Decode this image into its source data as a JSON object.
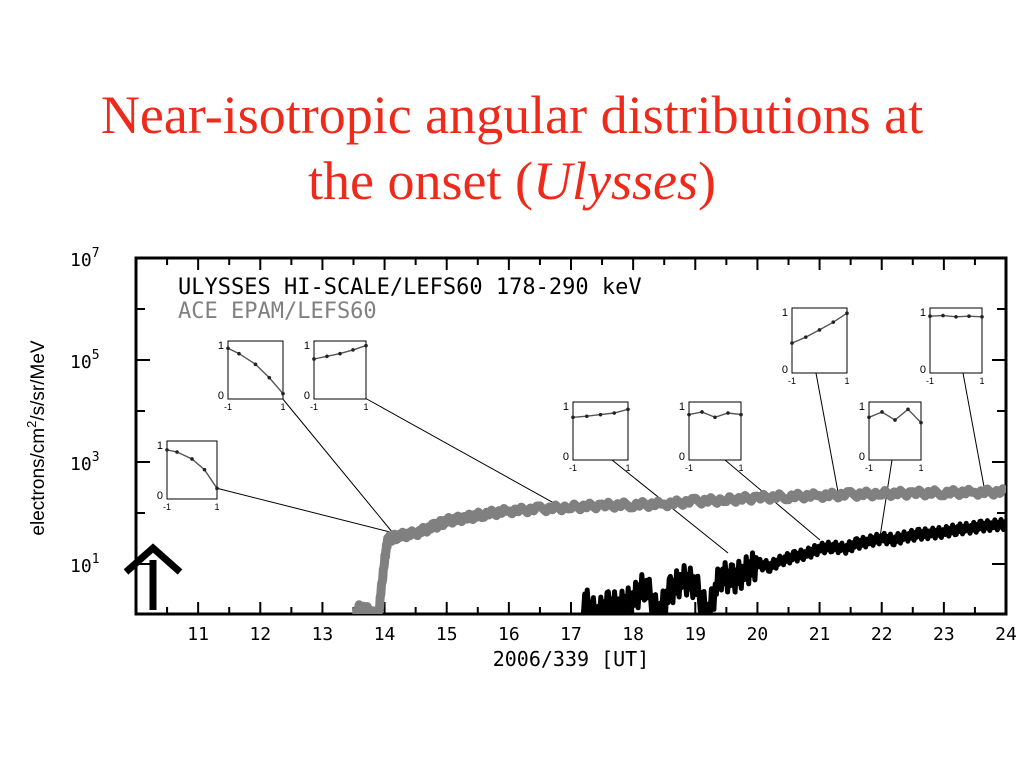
{
  "slide": {
    "title_line1": "Near-isotropic angular distributions at",
    "title_line2_prefix": "the onset (",
    "title_line2_italic": "Ulysses",
    "title_line2_suffix": ")"
  },
  "colors": {
    "title": "#ee2a1b",
    "ulysses": "#000000",
    "ace": "#808080"
  },
  "chart_data": {
    "type": "line",
    "ylabel_parts": [
      "electrons/cm",
      "2",
      "/s/sr/MeV"
    ],
    "yscale": "log",
    "ylim": [
      0.5,
      10000000
    ],
    "yticks": [
      {
        "exp": "1"
      },
      {
        "exp": "3"
      },
      {
        "exp": "5"
      },
      {
        "exp": "7"
      }
    ],
    "xlim": [
      10,
      24
    ],
    "xticks": [
      "11",
      "12",
      "13",
      "14",
      "15",
      "16",
      "17",
      "18",
      "19",
      "20",
      "21",
      "22",
      "23",
      "24"
    ],
    "xlabel": "2006/339 [UT]",
    "legend": [
      "ULYSSES HI-SCALE/LEFS60 178-290 keV",
      "ACE EPAM/LEFS60"
    ],
    "series": [
      {
        "name": "ULYSSES HI-SCALE/LEFS60 178-290 keV",
        "color": "#000000",
        "x": [
          17.2,
          17.4,
          17.6,
          17.8,
          18.0,
          18.2,
          18.4,
          18.6,
          18.8,
          19.0,
          19.2,
          19.4,
          19.6,
          19.8,
          20.0,
          20.2,
          20.4,
          20.6,
          20.8,
          21.0,
          21.2,
          21.4,
          21.6,
          21.8,
          22.0,
          22.2,
          22.4,
          22.6,
          22.8,
          23.0,
          23.2,
          23.4,
          23.6,
          23.8,
          24.0
        ],
        "y": [
          2,
          1,
          1.5,
          1.5,
          2,
          4,
          1,
          3,
          5,
          4,
          1,
          6,
          5,
          7,
          10,
          9,
          12,
          14,
          16,
          20,
          22,
          20,
          25,
          28,
          32,
          30,
          35,
          38,
          40,
          42,
          48,
          50,
          55,
          58,
          60
        ]
      },
      {
        "name": "ACE EPAM/LEFS60",
        "color": "#808080",
        "x": [
          13.55,
          13.6,
          13.9,
          14.0,
          14.05,
          14.2,
          14.5,
          14.8,
          15.0,
          15.3,
          15.6,
          16.0,
          16.5,
          17.0,
          17.5,
          18.0,
          18.5,
          19.0,
          19.5,
          20.0,
          20.5,
          21.0,
          21.5,
          22.0,
          22.5,
          23.0,
          23.5,
          24.0
        ],
        "y": [
          1,
          1.5,
          1,
          12,
          30,
          35,
          40,
          55,
          70,
          80,
          95,
          110,
          120,
          130,
          140,
          145,
          150,
          170,
          180,
          200,
          210,
          220,
          230,
          240,
          245,
          250,
          255,
          260
        ]
      }
    ],
    "insets": [
      {
        "xticks": [
          "-1",
          "1"
        ],
        "yticks": [
          "1",
          "0"
        ],
        "points": [
          [
            -1,
            0.95
          ],
          [
            -0.6,
            0.85
          ],
          [
            0,
            0.65
          ],
          [
            0.5,
            0.4
          ],
          [
            1,
            0.1
          ]
        ]
      },
      {
        "xticks": [
          "-1",
          "1"
        ],
        "yticks": [
          "1",
          "0"
        ],
        "points": [
          [
            -1,
            0.75
          ],
          [
            -0.5,
            0.8
          ],
          [
            0,
            0.85
          ],
          [
            0.5,
            0.92
          ],
          [
            1,
            1.0
          ]
        ]
      },
      {
        "xticks": [
          "-1",
          "1"
        ],
        "yticks": [
          "1",
          "0"
        ],
        "points": [
          [
            -1,
            0.92
          ],
          [
            -0.6,
            0.88
          ],
          [
            0,
            0.75
          ],
          [
            0.5,
            0.55
          ],
          [
            1,
            0.2
          ]
        ]
      },
      {
        "xticks": [
          "-1",
          "1"
        ],
        "yticks": [
          "1",
          "0"
        ],
        "points": [
          [
            -1,
            0.8
          ],
          [
            -0.5,
            0.82
          ],
          [
            0,
            0.85
          ],
          [
            0.5,
            0.88
          ],
          [
            1,
            0.95
          ]
        ]
      },
      {
        "xticks": [
          "-1",
          "1"
        ],
        "yticks": [
          "1",
          "0"
        ],
        "points": [
          [
            -1,
            0.85
          ],
          [
            -0.5,
            0.9
          ],
          [
            0,
            0.8
          ],
          [
            0.5,
            0.88
          ],
          [
            1,
            0.85
          ]
        ]
      },
      {
        "xticks": [
          "-1",
          "1"
        ],
        "yticks": [
          "1",
          "0"
        ],
        "points": [
          [
            -1,
            0.8
          ],
          [
            -0.5,
            0.9
          ],
          [
            0,
            0.75
          ],
          [
            0.5,
            0.95
          ],
          [
            1,
            0.7
          ]
        ]
      },
      {
        "xticks": [
          "-1",
          "1"
        ],
        "yticks": [
          "1",
          "0"
        ],
        "points": [
          [
            -1,
            0.5
          ],
          [
            -0.5,
            0.6
          ],
          [
            0,
            0.72
          ],
          [
            0.5,
            0.85
          ],
          [
            1,
            1.0
          ]
        ]
      },
      {
        "xticks": [
          "-1",
          "1"
        ],
        "yticks": [
          "1",
          "0"
        ],
        "points": [
          [
            -1,
            0.95
          ],
          [
            -0.5,
            0.96
          ],
          [
            0,
            0.94
          ],
          [
            0.5,
            0.95
          ],
          [
            1,
            0.94
          ]
        ]
      }
    ]
  }
}
